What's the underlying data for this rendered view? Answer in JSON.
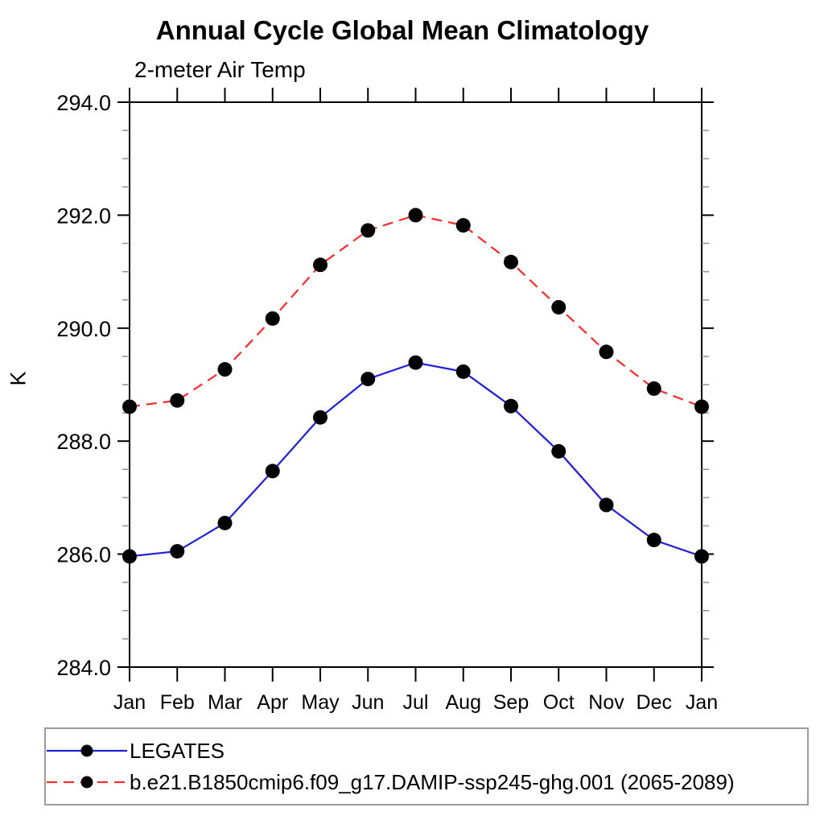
{
  "page": {
    "background": "#ffffff"
  },
  "chart_data": {
    "type": "line",
    "title": "Annual Cycle Global Mean Climatology",
    "subtitle": "2-meter Air Temp",
    "ylabel": "K",
    "xlabel": "",
    "x_labels": [
      "Jan",
      "Feb",
      "Mar",
      "Apr",
      "May",
      "Jun",
      "Jul",
      "Aug",
      "Sep",
      "Oct",
      "Nov",
      "Dec",
      "Jan"
    ],
    "ylim": [
      284.0,
      294.0
    ],
    "y_tick_labels": [
      "284.0",
      "286.0",
      "288.0",
      "290.0",
      "292.0",
      "294.0"
    ],
    "y_major_ticks": [
      284.0,
      286.0,
      288.0,
      290.0,
      292.0,
      294.0
    ],
    "y_minor_tick_step": 0.5,
    "grid": false,
    "frame": true,
    "axis_color": "#000000",
    "minor_tick_color": "#909090",
    "legend_position": "bottom",
    "legend_border_color": "#9c9c9c",
    "series": [
      {
        "name": "LEGATES",
        "color": "#2222d2",
        "line_style": "solid",
        "marker": "circle",
        "marker_color": "#000000",
        "values": [
          285.96,
          286.05,
          286.55,
          287.47,
          288.42,
          289.1,
          289.39,
          289.23,
          288.62,
          287.82,
          286.87,
          286.25,
          285.96
        ]
      },
      {
        "name": "b.e21.B1850cmip6.f09_g17.DAMIP-ssp245-ghg.001 (2065-2089)",
        "color": "#f23030",
        "line_style": "dashed",
        "marker": "circle",
        "marker_color": "#000000",
        "values": [
          288.61,
          288.72,
          289.27,
          290.17,
          291.12,
          291.73,
          292.0,
          291.82,
          291.17,
          290.37,
          289.58,
          288.93,
          288.61
        ]
      }
    ]
  }
}
